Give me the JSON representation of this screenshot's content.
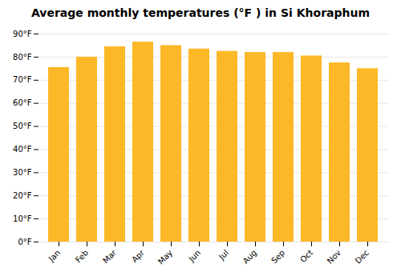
{
  "chart_data": {
    "type": "bar",
    "title": "Average monthly temperatures (°F ) in Si Khoraphum",
    "categories": [
      "Jan",
      "Feb",
      "Mar",
      "Apr",
      "May",
      "Jun",
      "Jul",
      "Aug",
      "Sep",
      "Oct",
      "Nov",
      "Dec"
    ],
    "values": [
      75.5,
      80.0,
      84.5,
      86.5,
      85.0,
      83.5,
      82.5,
      82.0,
      82.0,
      80.5,
      77.5,
      75.0
    ],
    "color": "#FDB827",
    "ylim": [
      0,
      90
    ],
    "yticks": [
      {
        "value": 0,
        "label": "0°F"
      },
      {
        "value": 10,
        "label": "10°F"
      },
      {
        "value": 20,
        "label": "20°F"
      },
      {
        "value": 30,
        "label": "30°F"
      },
      {
        "value": 40,
        "label": "40°F"
      },
      {
        "value": 50,
        "label": "50°F"
      },
      {
        "value": 60,
        "label": "60°F"
      },
      {
        "value": 70,
        "label": "70°F"
      },
      {
        "value": 80,
        "label": "80°F"
      },
      {
        "value": 90,
        "label": "90°F"
      }
    ],
    "grid": true
  }
}
